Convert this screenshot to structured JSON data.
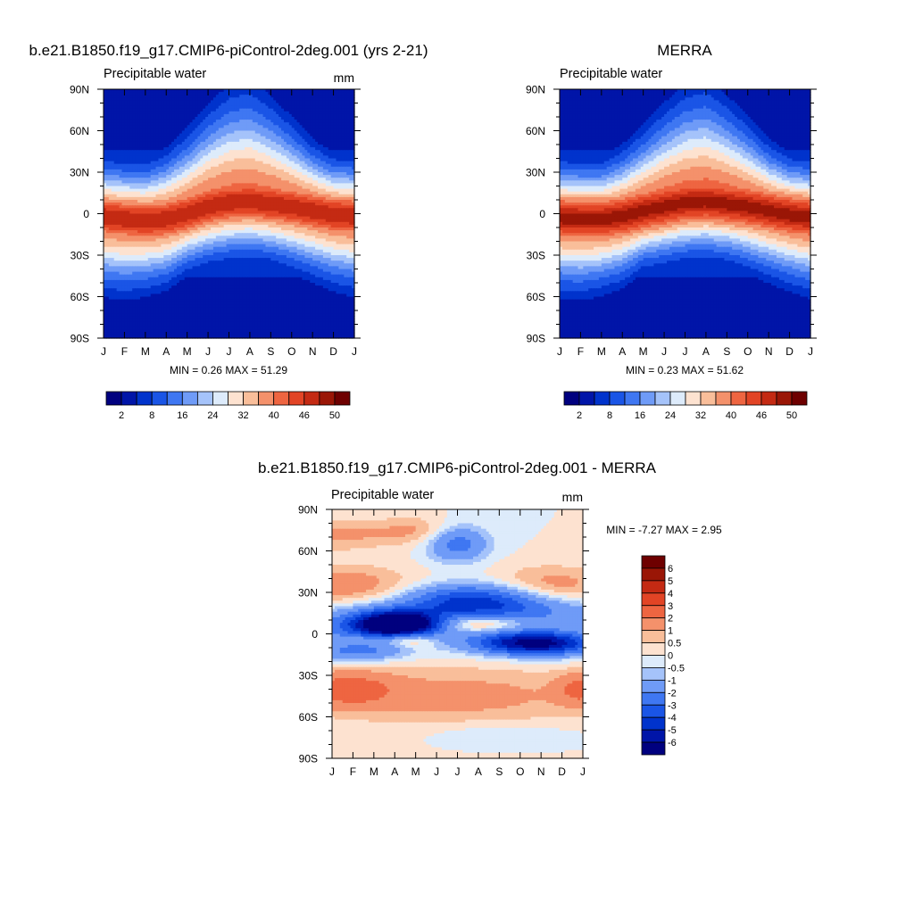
{
  "chart_data": [
    {
      "type": "heatmap",
      "title": "b.e21.B1850.f19_g17.CMIP6-piControl-2deg.001 (yrs 2-21)",
      "subtitle": "Precipitable water",
      "units": "mm",
      "x_tick_labels": [
        "J",
        "F",
        "M",
        "A",
        "M",
        "J",
        "J",
        "A",
        "S",
        "O",
        "N",
        "D",
        "J"
      ],
      "y_tick_labels": [
        "90N",
        "60N",
        "30N",
        "0",
        "30S",
        "60S",
        "90S"
      ],
      "y_values": [
        90,
        60,
        30,
        0,
        -30,
        -60,
        -90
      ],
      "ylim": [
        -90,
        90
      ],
      "stats_text": "MIN =   0.26 MAX =  51.29",
      "min": 0.26,
      "max": 51.29,
      "field": {
        "equator_max": 48,
        "itcz_lat_by_month": [
          -2,
          -4,
          -5,
          -4,
          0,
          5,
          8,
          9,
          7,
          5,
          2,
          -1,
          -2
        ],
        "band_width": 13,
        "pole_value": 2,
        "nh_extra_by_month": [
          0,
          0,
          0,
          2,
          5,
          9,
          12,
          13,
          10,
          6,
          2,
          0,
          0
        ],
        "sh_extra_by_month": [
          4,
          4,
          3,
          2,
          0,
          0,
          0,
          0,
          0,
          1,
          2,
          3,
          4
        ]
      },
      "colorbar": {
        "orientation": "horizontal",
        "levels": [
          2,
          5,
          8,
          12,
          16,
          20,
          24,
          28,
          32,
          36,
          40,
          43,
          46,
          48,
          50
        ],
        "tick_labels": [
          "2",
          "8",
          "16",
          "24",
          "32",
          "40",
          "46",
          "50"
        ],
        "colors": [
          "#00007F",
          "#0015A8",
          "#0033CC",
          "#1A55E6",
          "#3F77F2",
          "#6F9BF7",
          "#A5C3FA",
          "#DDEBFB",
          "#FDE2D0",
          "#F9BE9A",
          "#F4916B",
          "#EE6541",
          "#E24425",
          "#C42A13",
          "#9A1606",
          "#6E0000"
        ]
      }
    },
    {
      "type": "heatmap",
      "title": "MERRA",
      "subtitle": "Precipitable water",
      "units": "",
      "x_tick_labels": [
        "J",
        "F",
        "M",
        "A",
        "M",
        "J",
        "J",
        "A",
        "S",
        "O",
        "N",
        "D",
        "J"
      ],
      "y_tick_labels": [
        "90N",
        "60N",
        "30N",
        "0",
        "30S",
        "60S",
        "90S"
      ],
      "y_values": [
        90,
        60,
        30,
        0,
        -30,
        -60,
        -90
      ],
      "ylim": [
        -90,
        90
      ],
      "stats_text": "MIN =   0.23 MAX =  51.62",
      "min": 0.23,
      "max": 51.62,
      "field": {
        "equator_max": 49,
        "itcz_lat_by_month": [
          -3,
          -4,
          -4,
          -2,
          2,
          5,
          8,
          9,
          7,
          5,
          2,
          -1,
          -3
        ],
        "band_width": 14,
        "pole_value": 2,
        "nh_extra_by_month": [
          0,
          0,
          0,
          2,
          5,
          9,
          12,
          13,
          10,
          6,
          2,
          0,
          0
        ],
        "sh_extra_by_month": [
          4,
          4,
          3,
          2,
          0,
          0,
          0,
          0,
          0,
          1,
          2,
          3,
          4
        ]
      },
      "colorbar": {
        "orientation": "horizontal",
        "levels": [
          2,
          5,
          8,
          12,
          16,
          20,
          24,
          28,
          32,
          36,
          40,
          43,
          46,
          48,
          50
        ],
        "tick_labels": [
          "2",
          "8",
          "16",
          "24",
          "32",
          "40",
          "46",
          "50"
        ],
        "colors": [
          "#00007F",
          "#0015A8",
          "#0033CC",
          "#1A55E6",
          "#3F77F2",
          "#6F9BF7",
          "#A5C3FA",
          "#DDEBFB",
          "#FDE2D0",
          "#F9BE9A",
          "#F4916B",
          "#EE6541",
          "#E24425",
          "#C42A13",
          "#9A1606",
          "#6E0000"
        ]
      }
    },
    {
      "type": "heatmap",
      "title": "b.e21.B1850.f19_g17.CMIP6-piControl-2deg.001 - MERRA",
      "subtitle": "Precipitable water",
      "units": "mm",
      "x_tick_labels": [
        "J",
        "F",
        "M",
        "A",
        "M",
        "J",
        "J",
        "A",
        "S",
        "O",
        "N",
        "D",
        "J"
      ],
      "y_tick_labels": [
        "90N",
        "60N",
        "30N",
        "0",
        "30S",
        "60S",
        "90S"
      ],
      "y_values": [
        90,
        60,
        30,
        0,
        -30,
        -60,
        -90
      ],
      "ylim": [
        -90,
        90
      ],
      "stats_text": "MIN =  -7.27 MAX =   2.95",
      "min": -7.27,
      "max": 2.95,
      "anomalies": [
        {
          "month": 0.25,
          "lat": 72,
          "value": 1.2,
          "width_months": 2.0,
          "width_lat": 8
        },
        {
          "month": 4.0,
          "lat": 75,
          "value": 1.0,
          "width_months": 1.2,
          "width_lat": 7
        },
        {
          "month": 0.8,
          "lat": 35,
          "value": 1.5,
          "width_months": 2.2,
          "width_lat": 10
        },
        {
          "month": 10.5,
          "lat": 35,
          "value": 1.4,
          "width_months": 2.0,
          "width_lat": 10
        },
        {
          "month": 0.7,
          "lat": -40,
          "value": 2.2,
          "width_months": 1.6,
          "width_lat": 9
        },
        {
          "month": 11.9,
          "lat": -40,
          "value": 2.0,
          "width_months": 0.8,
          "width_lat": 8
        },
        {
          "month": 6.0,
          "lat": -45,
          "value": 1.3,
          "width_months": 5.0,
          "width_lat": 15
        },
        {
          "month": 6.0,
          "lat": 65,
          "value": -2.5,
          "width_months": 1.0,
          "width_lat": 9
        },
        {
          "month": 3.2,
          "lat": 7,
          "value": -7.27,
          "width_months": 1.3,
          "width_lat": 6
        },
        {
          "month": 2.0,
          "lat": 5,
          "value": -3.0,
          "width_months": 2.2,
          "width_lat": 9
        },
        {
          "month": 6.7,
          "lat": 25,
          "value": -3.5,
          "width_months": 2.2,
          "width_lat": 8
        },
        {
          "month": 8.0,
          "lat": 15,
          "value": -2.5,
          "width_months": 3.5,
          "width_lat": 8
        },
        {
          "month": 10.2,
          "lat": -7,
          "value": -5.0,
          "width_months": 1.8,
          "width_lat": 6
        },
        {
          "month": 8.5,
          "lat": -6,
          "value": -2.5,
          "width_months": 1.8,
          "width_lat": 6
        },
        {
          "month": 1.2,
          "lat": -13,
          "value": -2.0,
          "width_months": 1.6,
          "width_lat": 5
        },
        {
          "month": 7.0,
          "lat": 8,
          "value": 2.5,
          "width_months": 1.6,
          "width_lat": 5
        },
        {
          "month": 3.8,
          "lat": -4,
          "value": 2.0,
          "width_months": 0.8,
          "width_lat": 4
        },
        {
          "month": 2.0,
          "lat": -4,
          "value": 1.2,
          "width_months": 1.0,
          "width_lat": 3
        },
        {
          "month": 8.0,
          "lat": -72,
          "value": -0.5,
          "width_months": 2.5,
          "width_lat": 6
        }
      ],
      "colorbar": {
        "orientation": "vertical",
        "levels": [
          -6,
          -5,
          -4,
          -3,
          -2,
          -1,
          -0.5,
          0,
          0.5,
          1,
          2,
          3,
          4,
          5,
          6
        ],
        "tick_labels": [
          "6",
          "5",
          "4",
          "3",
          "2",
          "1",
          "0.5",
          "0",
          "-0.5",
          "-1",
          "-2",
          "-3",
          "-4",
          "-5",
          "-6"
        ],
        "colors": [
          "#00007F",
          "#0015A8",
          "#0033CC",
          "#1A55E6",
          "#3F77F2",
          "#6F9BF7",
          "#A5C3FA",
          "#DDEBFB",
          "#FDE2D0",
          "#F9BE9A",
          "#F4916B",
          "#EE6541",
          "#E24425",
          "#C42A13",
          "#9A1606",
          "#6E0000"
        ]
      }
    }
  ]
}
